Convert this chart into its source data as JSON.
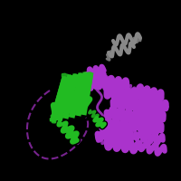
{
  "background_color": "#000000",
  "colors": {
    "green": "#22bb22",
    "purple": "#aa33cc",
    "gray": "#888888"
  },
  "figsize": [
    2.0,
    2.0
  ],
  "dpi": 100
}
